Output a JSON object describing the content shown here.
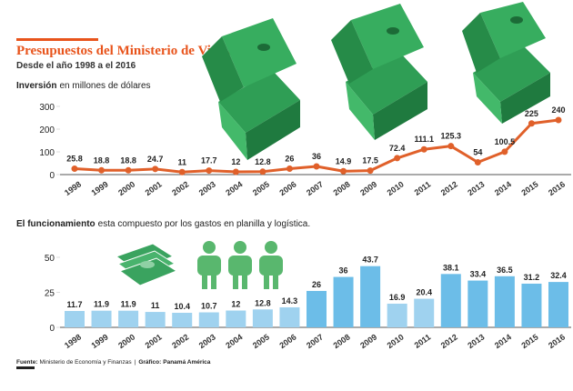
{
  "chart_data": [
    {
      "type": "line",
      "title": "Presupuestos del Ministerio de Vivienda",
      "subtitle": "Desde el año 1998 a el 2016",
      "ylabel_bold": "Inversión",
      "ylabel_rest": "en millones de dólares",
      "categories": [
        "1998",
        "1999",
        "2000",
        "2001",
        "2002",
        "2003",
        "2004",
        "2005",
        "2006",
        "2007",
        "2008",
        "2009",
        "2010",
        "2011",
        "2012",
        "2013",
        "2014",
        "2015",
        "2016"
      ],
      "values": [
        25.8,
        18.8,
        18.8,
        24.7,
        11,
        17.7,
        12,
        12.8,
        26,
        36,
        14.9,
        17.5,
        72.4,
        111.1,
        125.3,
        54,
        100.5,
        225,
        240
      ],
      "color": "#e0602a",
      "ylim": [
        0,
        300
      ],
      "yticks": [
        0,
        100,
        200,
        300
      ]
    },
    {
      "type": "bar",
      "title_bold": "El funcionamiento",
      "title_rest": "esta compuesto por los gastos en planilla y logística.",
      "categories": [
        "1998",
        "1999",
        "2000",
        "2001",
        "2002",
        "2003",
        "2004",
        "2005",
        "2006",
        "2007",
        "2008",
        "2009",
        "2010",
        "2011",
        "2012",
        "2013",
        "2014",
        "2015",
        "2016"
      ],
      "values": [
        11.7,
        11.9,
        11.9,
        11,
        10.4,
        10.7,
        12,
        12.8,
        14.3,
        26,
        36,
        43.7,
        16.9,
        20.4,
        38.1,
        33.4,
        36.5,
        31.2,
        32.4
      ],
      "colors": [
        "#9fd2ef",
        "#9fd2ef",
        "#9fd2ef",
        "#9fd2ef",
        "#9fd2ef",
        "#9fd2ef",
        "#9fd2ef",
        "#9fd2ef",
        "#9fd2ef",
        "#6cbde8",
        "#6cbde8",
        "#6cbde8",
        "#9fd2ef",
        "#9fd2ef",
        "#6cbde8",
        "#6cbde8",
        "#6cbde8",
        "#6cbde8",
        "#6cbde8"
      ],
      "ylim": [
        0,
        50
      ],
      "yticks": [
        0,
        25,
        50
      ]
    }
  ],
  "footer": {
    "source_label": "Fuente:",
    "source": "Ministerio de Economía y Finanzas",
    "credit_label": "Gráfico:",
    "credit": "Panamá América"
  }
}
